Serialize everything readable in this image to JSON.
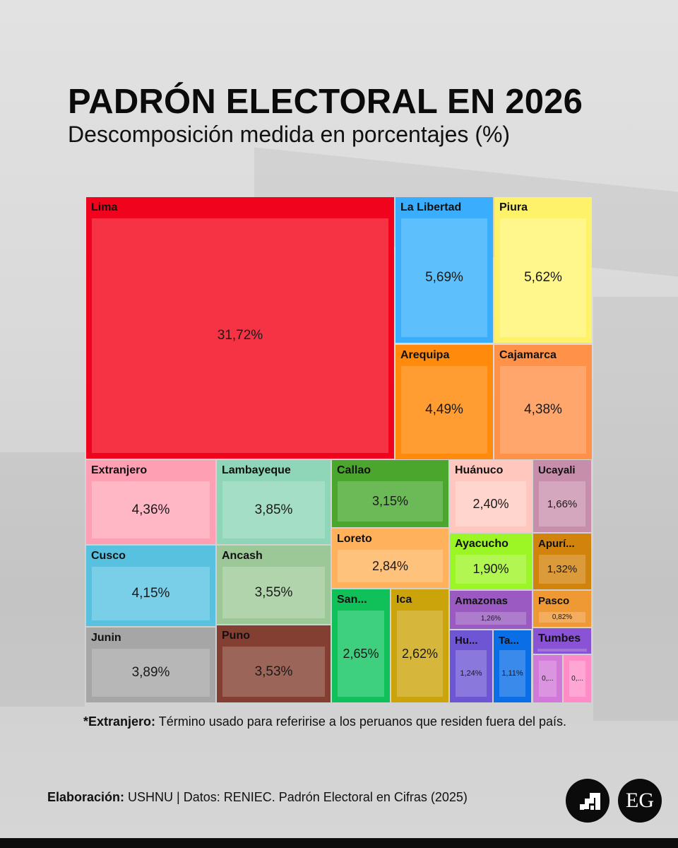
{
  "header": {
    "title": "PADRÓN ELECTORAL EN 2026",
    "subtitle": "Descomposición medida en porcentajes (%)"
  },
  "note": {
    "label": "*Extranjero:",
    "text": " Término usado para referirise a los peruanos que residen fuera del país."
  },
  "credit": {
    "label": "Elaboración:",
    "text": " USHNU | Datos: RENIEC. Padrón Electoral en Cifras (2025)"
  },
  "logos": {
    "ushnu": "ushnu-logo-icon",
    "eg": "EG"
  },
  "chart_data": {
    "type": "treemap",
    "unit": "%",
    "cells": [
      {
        "label": "Lima",
        "value": 31.72,
        "value_label": "31,72%",
        "color": "#f0041d",
        "inner": "#f53344"
      },
      {
        "label": "La Libertad",
        "value": 5.69,
        "value_label": "5,69%",
        "color": "#3aaefc",
        "inner": "#5dc0fd"
      },
      {
        "label": "Piura",
        "value": 5.62,
        "value_label": "5,62%",
        "color": "#fff26b",
        "inner": "#fff68c"
      },
      {
        "label": "Arequipa",
        "value": 4.49,
        "value_label": "4,49%",
        "color": "#ff8a0b",
        "inner": "#ff9d33"
      },
      {
        "label": "Cajamarca",
        "value": 4.38,
        "value_label": "4,38%",
        "color": "#ff9148",
        "inner": "#ffa66d"
      },
      {
        "label": "Extranjero",
        "value": 4.36,
        "value_label": "4,36%",
        "color": "#ff9fb3",
        "inner": "#ffb6c5"
      },
      {
        "label": "Lambayeque",
        "value": 3.85,
        "value_label": "3,85%",
        "color": "#8fd5b8",
        "inner": "#a5dec6"
      },
      {
        "label": "Callao",
        "value": 3.15,
        "value_label": "3,15%",
        "color": "#4aa62c",
        "inner": "#6bb957"
      },
      {
        "label": "Huánuco",
        "value": 2.4,
        "value_label": "2,40%",
        "color": "#ffc7bd",
        "inner": "#ffd5ce"
      },
      {
        "label": "Ucayali",
        "value": 1.66,
        "value_label": "1,66%",
        "color": "#c78eab",
        "inner": "#d5a7be"
      },
      {
        "label": "Loreto",
        "value": 2.84,
        "value_label": "2,84%",
        "color": "#ffb25b",
        "inner": "#ffc27c"
      },
      {
        "label": "Cusco",
        "value": 4.15,
        "value_label": "4,15%",
        "color": "#59c1e0",
        "inner": "#79cfe8"
      },
      {
        "label": "Ancash",
        "value": 3.55,
        "value_label": "3,55%",
        "color": "#9cc897",
        "inner": "#b1d4ac"
      },
      {
        "label": "Ayacucho",
        "value": 1.9,
        "value_label": "1,90%",
        "color": "#9cf524",
        "inner": "#b1f651"
      },
      {
        "label": "Apurí...",
        "value": 1.32,
        "value_label": "1,32%",
        "color": "#d1830c",
        "inner": "#dc9b3b"
      },
      {
        "label": "San...",
        "value": 2.65,
        "value_label": "2,65%",
        "color": "#10c15a",
        "inner": "#3ed07e"
      },
      {
        "label": "Ica",
        "value": 2.62,
        "value_label": "2,62%",
        "color": "#cba40b",
        "inner": "#d6b63b"
      },
      {
        "label": "Amazonas",
        "value": 1.26,
        "value_label": "1,26%",
        "color": "#9b5ac2",
        "inner": "#ae7ccd"
      },
      {
        "label": "Pasco",
        "value": 0.82,
        "value_label": "0,82%",
        "color": "#ef9934",
        "inner": "#f4ad5e"
      },
      {
        "label": "Junin",
        "value": 3.89,
        "value_label": "3,89%",
        "color": "#a6a6a6",
        "inner": "#b7b7b7"
      },
      {
        "label": "Puno",
        "value": 3.53,
        "value_label": "3,53%",
        "color": "#833f32",
        "inner": "#9c6559"
      },
      {
        "label": "Hu...",
        "value": 1.24,
        "value_label": "1,24%",
        "color": "#6e55d4",
        "inner": "#8a78dc"
      },
      {
        "label": "Ta...",
        "value": 1.11,
        "value_label": "1,11%",
        "color": "#0a6ee6",
        "inner": "#3a8aeb"
      },
      {
        "label": "Tumbes",
        "value": null,
        "value_label": "",
        "color": "#8a52d4",
        "inner": "#a274dc"
      },
      {
        "label": "",
        "value": null,
        "value_label": "0,...",
        "color": "#d179d8",
        "inner": "#db94e0"
      },
      {
        "label": "",
        "value": null,
        "value_label": "0,...",
        "color": "#ff8cc7",
        "inner": "#ffa6d4"
      }
    ]
  }
}
